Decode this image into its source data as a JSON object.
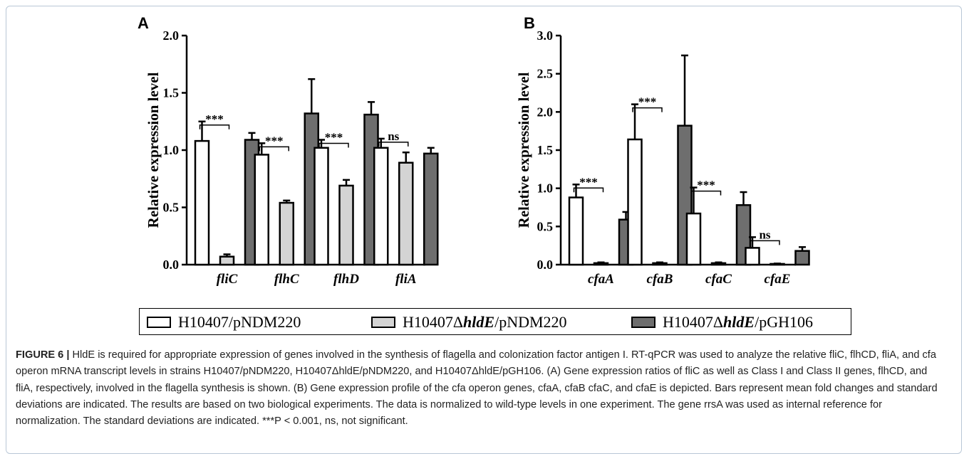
{
  "chart_data": [
    {
      "type": "bar",
      "panel": "A",
      "ylabel": "Relative expression level",
      "ylim": [
        0,
        2.0
      ],
      "yticks": [
        "0.0",
        "0.5",
        "1.0",
        "1.5",
        "2.0"
      ],
      "categories": [
        "fliC",
        "flhC",
        "flhD",
        "fliA"
      ],
      "series": [
        {
          "name": "H10407/pNDM220",
          "values": [
            1.08,
            0.96,
            1.02,
            1.02
          ],
          "errors": [
            0.17,
            0.1,
            0.07,
            0.08
          ]
        },
        {
          "name": "H10407ΔhldE/pNDM220",
          "values": [
            0.07,
            0.54,
            0.69,
            0.89
          ],
          "errors": [
            0.02,
            0.02,
            0.05,
            0.09
          ]
        },
        {
          "name": "H10407ΔhldE/pGH106",
          "values": [
            1.09,
            1.32,
            1.31,
            0.97
          ],
          "errors": [
            0.06,
            0.3,
            0.11,
            0.05
          ]
        }
      ],
      "significance": [
        "***",
        "***",
        "***",
        "ns"
      ]
    },
    {
      "type": "bar",
      "panel": "B",
      "ylabel": "Relative expression level",
      "ylim": [
        0,
        3.0
      ],
      "yticks": [
        "0.0",
        "0.5",
        "1.0",
        "1.5",
        "2.0",
        "2.5",
        "3.0"
      ],
      "categories": [
        "cfaA",
        "cfaB",
        "cfaC",
        "cfaE"
      ],
      "series": [
        {
          "name": "H10407/pNDM220",
          "values": [
            0.88,
            1.64,
            0.67,
            0.22
          ],
          "errors": [
            0.17,
            0.46,
            0.34,
            0.14
          ]
        },
        {
          "name": "H10407ΔhldE/pNDM220",
          "values": [
            0.02,
            0.02,
            0.02,
            0.01
          ],
          "errors": [
            0.01,
            0.01,
            0.01,
            0.005
          ]
        },
        {
          "name": "H10407ΔhldE/pGH106",
          "values": [
            0.59,
            1.82,
            0.78,
            0.18
          ],
          "errors": [
            0.1,
            0.92,
            0.17,
            0.05
          ]
        }
      ],
      "significance": [
        "***",
        "***",
        "***",
        "ns"
      ]
    }
  ],
  "colors": {
    "series": [
      "#ffffff",
      "#d4d4d4",
      "#6e6e6e"
    ],
    "frame": "#b9c7d6"
  },
  "legend": {
    "items": [
      {
        "pre": "H10407/pNDM220",
        "italic": "",
        "post": ""
      },
      {
        "pre": "H10407Δ",
        "italic": "hldE",
        "post": "/pNDM220"
      },
      {
        "pre": "H10407Δ",
        "italic": "hldE",
        "post": "/pGH106"
      }
    ]
  },
  "caption": {
    "label": "FIGURE 6 |",
    "text": " HldE is required for appropriate expression of genes involved in the synthesis of flagella and colonization factor antigen I. RT-qPCR was used to analyze the relative fliC, flhCD, fliA, and cfa operon mRNA transcript levels in strains H10407/pNDM220, H10407ΔhldE/pNDM220, and H10407ΔhldE/pGH106. (A) Gene expression ratios of fliC as well as Class I and Class II genes, flhCD, and fliA, respectively, involved in the flagella synthesis is shown. (B) Gene expression profile of the cfa operon genes, cfaA, cfaB cfaC, and cfaE is depicted. Bars represent mean fold changes and standard deviations are indicated. The results are based on two biological experiments. The data is normalized to wild-type levels in one experiment. The gene rrsA was used as internal reference for normalization. The standard deviations are indicated. ***P < 0.001, ns, not significant."
  }
}
